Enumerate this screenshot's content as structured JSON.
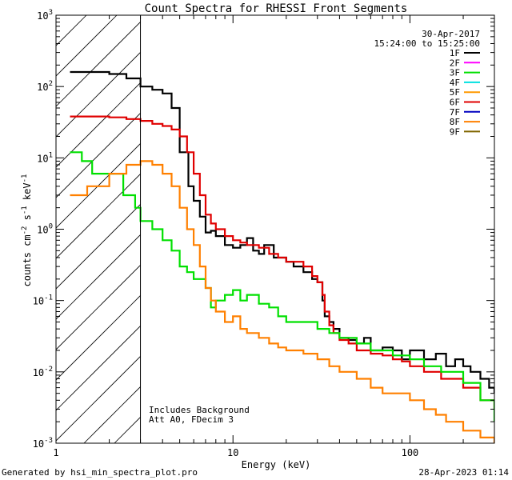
{
  "chart_data": {
    "type": "line",
    "title": "Count Spectra for RHESSI Front Segments",
    "xlabel": "Energy (keV)",
    "ylabel": "counts cm",
    "ylabel_sup1": "-2",
    "ylabel_mid": " s",
    "ylabel_sup2": "-1",
    "ylabel_mid2": " keV",
    "ylabel_sup3": "-1",
    "x_scale": "log",
    "y_scale": "log",
    "xlim": [
      1,
      300
    ],
    "ylim": [
      0.001,
      1000
    ],
    "x_ticks": [
      {
        "value": 1,
        "label": "1"
      },
      {
        "value": 10,
        "label": "10"
      },
      {
        "value": 100,
        "label": "100"
      }
    ],
    "y_ticks": [
      {
        "value": 0.001,
        "base": "10",
        "exp": "-3"
      },
      {
        "value": 0.01,
        "base": "10",
        "exp": "-2"
      },
      {
        "value": 0.1,
        "base": "10",
        "exp": "-1"
      },
      {
        "value": 1,
        "base": "10",
        "exp": "0"
      },
      {
        "value": 10,
        "base": "10",
        "exp": "1"
      },
      {
        "value": 100,
        "base": "10",
        "exp": "2"
      },
      {
        "value": 1000,
        "base": "10",
        "exp": "3"
      }
    ],
    "hatched_region_x": [
      1,
      3
    ],
    "date": "30-Apr-2017",
    "time_range": "15:24:00 to 15:25:00",
    "annotations": [
      "Includes Background",
      "Att A0, FDecim 3"
    ],
    "legend": [
      {
        "label": "1F",
        "color": "#000000"
      },
      {
        "label": "2F",
        "color": "#ff00ff"
      },
      {
        "label": "3F",
        "color": "#00e000"
      },
      {
        "label": "4F",
        "color": "#00e0e0"
      },
      {
        "label": "5F",
        "color": "#ff9900"
      },
      {
        "label": "6F",
        "color": "#e00000"
      },
      {
        "label": "7F",
        "color": "#0000c0"
      },
      {
        "label": "8F",
        "color": "#ff8000"
      },
      {
        "label": "9F",
        "color": "#806600"
      }
    ],
    "series": [
      {
        "name": "1F",
        "color": "#000000",
        "width": 2.2,
        "x": [
          1.2,
          1.5,
          2.0,
          2.5,
          3.0,
          3.5,
          4.0,
          4.5,
          5.0,
          5.2,
          5.6,
          6.0,
          6.5,
          7.0,
          7.5,
          8.0,
          9.0,
          10,
          11,
          12,
          13,
          14,
          15,
          17,
          20,
          22,
          25,
          28,
          30,
          32,
          33,
          35,
          37,
          40,
          45,
          50,
          55,
          60,
          70,
          80,
          90,
          100,
          120,
          140,
          160,
          180,
          200,
          220,
          250,
          280,
          300
        ],
        "y": [
          160,
          160,
          150,
          130,
          100,
          90,
          80,
          50,
          12,
          12,
          4,
          2.5,
          1.5,
          0.9,
          0.95,
          0.8,
          0.6,
          0.55,
          0.6,
          0.75,
          0.5,
          0.45,
          0.6,
          0.4,
          0.35,
          0.3,
          0.25,
          0.2,
          0.18,
          0.1,
          0.06,
          0.05,
          0.04,
          0.03,
          0.028,
          0.025,
          0.03,
          0.02,
          0.022,
          0.02,
          0.015,
          0.02,
          0.015,
          0.018,
          0.012,
          0.015,
          0.012,
          0.01,
          0.008,
          0.006,
          0.005
        ]
      },
      {
        "name": "6F",
        "color": "#e00000",
        "width": 2.2,
        "x": [
          1.2,
          1.5,
          2.0,
          2.5,
          3.0,
          3.5,
          4.0,
          4.5,
          5.0,
          5.5,
          6.0,
          6.5,
          7.0,
          7.5,
          8.0,
          9.0,
          10,
          11,
          12,
          14,
          16,
          18,
          20,
          22,
          25,
          28,
          30,
          32,
          33,
          35,
          37,
          40,
          45,
          50,
          60,
          70,
          80,
          90,
          100,
          120,
          150,
          200,
          250,
          300
        ],
        "y": [
          38,
          38,
          37,
          35,
          33,
          30,
          28,
          25,
          20,
          12,
          6,
          3,
          1.6,
          1.2,
          1.0,
          0.8,
          0.7,
          0.65,
          0.6,
          0.55,
          0.45,
          0.4,
          0.35,
          0.35,
          0.3,
          0.22,
          0.18,
          0.12,
          0.07,
          0.045,
          0.035,
          0.028,
          0.025,
          0.02,
          0.018,
          0.017,
          0.015,
          0.014,
          0.012,
          0.01,
          0.008,
          0.006,
          0.004,
          0.003
        ]
      },
      {
        "name": "3F",
        "color": "#00e000",
        "width": 2.2,
        "x": [
          1.2,
          1.4,
          1.6,
          2.0,
          2.4,
          2.8,
          3.0,
          3.5,
          4.0,
          4.5,
          5.0,
          5.5,
          6.0,
          7.0,
          7.5,
          8.0,
          9.0,
          10,
          11,
          12,
          14,
          16,
          18,
          20,
          25,
          30,
          35,
          40,
          50,
          60,
          70,
          80,
          100,
          120,
          150,
          200,
          250,
          300
        ],
        "y": [
          12,
          9,
          6,
          6,
          3,
          2,
          1.3,
          1.0,
          0.7,
          0.5,
          0.3,
          0.25,
          0.2,
          0.15,
          0.08,
          0.1,
          0.12,
          0.14,
          0.1,
          0.12,
          0.09,
          0.08,
          0.06,
          0.05,
          0.05,
          0.04,
          0.035,
          0.03,
          0.025,
          0.02,
          0.02,
          0.017,
          0.015,
          0.012,
          0.01,
          0.007,
          0.004,
          0.002
        ]
      },
      {
        "name": "8F",
        "color": "#ff8000",
        "width": 2.2,
        "x": [
          1.2,
          1.5,
          2.0,
          2.5,
          3.0,
          3.5,
          4.0,
          4.5,
          5.0,
          5.5,
          6.0,
          6.5,
          7.0,
          7.5,
          8.0,
          9.0,
          10,
          11,
          12,
          14,
          16,
          18,
          20,
          25,
          30,
          35,
          40,
          50,
          60,
          70,
          80,
          100,
          120,
          140,
          160,
          200,
          250,
          300
        ],
        "y": [
          3,
          4,
          6,
          8,
          9,
          8,
          6,
          4,
          2,
          1,
          0.6,
          0.3,
          0.15,
          0.1,
          0.07,
          0.05,
          0.06,
          0.04,
          0.035,
          0.03,
          0.025,
          0.022,
          0.02,
          0.018,
          0.015,
          0.012,
          0.01,
          0.008,
          0.006,
          0.005,
          0.005,
          0.004,
          0.003,
          0.0025,
          0.002,
          0.0015,
          0.0012,
          0.001
        ]
      }
    ]
  },
  "footer": {
    "generator": "Generated by hsi_min_spectra_plot.pro",
    "timestamp": "28-Apr-2023 01:14"
  }
}
